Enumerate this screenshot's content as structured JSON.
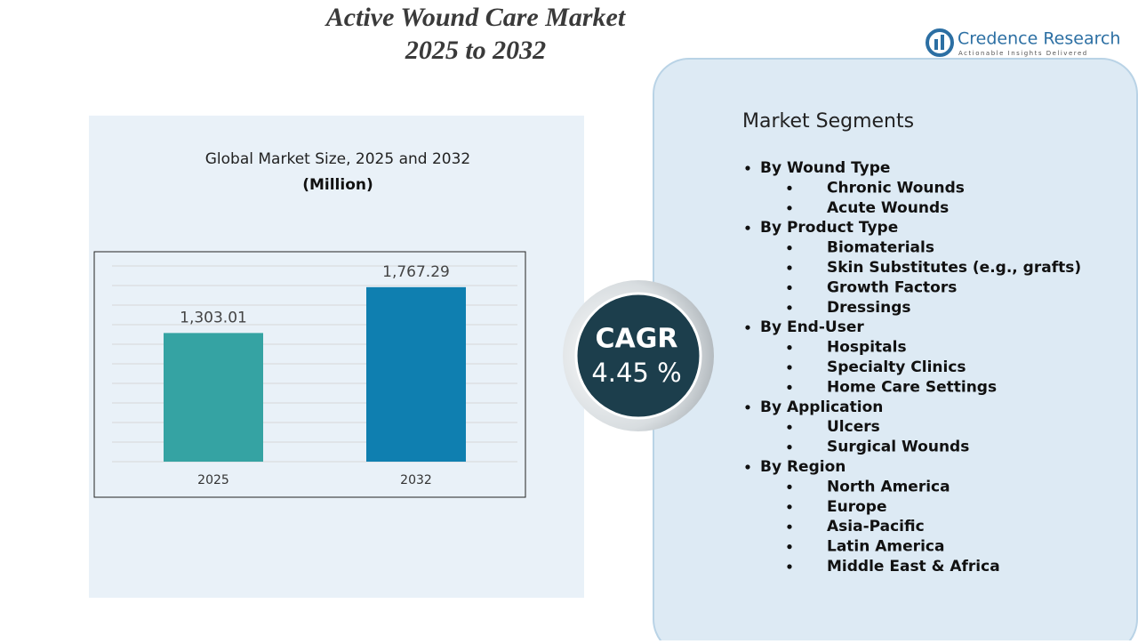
{
  "header": {
    "title_lines": [
      "Active Wound Care Market",
      "2025 to 2032"
    ]
  },
  "logo": {
    "name": "Credence Research",
    "tagline": "Actionable Insights Delivered"
  },
  "chart_data": {
    "type": "bar",
    "title": "Global Market Size, 2025 and 2032",
    "subtitle": "(Million)",
    "categories": [
      "2025",
      "2032"
    ],
    "values": [
      1303.01,
      1767.29
    ],
    "value_labels": [
      "1,303.01",
      "1,767.29"
    ],
    "colors": [
      "#35a3a3",
      "#0f7fb0"
    ],
    "ylim": [
      0,
      2000
    ]
  },
  "cagr": {
    "label": "CAGR",
    "value": "4.45 %"
  },
  "segments": {
    "title": "Market Segments",
    "groups": [
      {
        "name": "By Wound Type",
        "items": [
          "Chronic Wounds",
          "Acute Wounds"
        ]
      },
      {
        "name": "By Product Type",
        "items": [
          "Biomaterials",
          "Skin Substitutes (e.g., grafts)",
          "Growth Factors",
          "Dressings"
        ]
      },
      {
        "name": "By End-User",
        "items": [
          "Hospitals",
          "Specialty Clinics",
          "Home Care Settings"
        ]
      },
      {
        "name": "By Application",
        "items": [
          "Ulcers",
          "Surgical Wounds"
        ]
      },
      {
        "name": "By Region",
        "items": [
          "North America",
          "Europe",
          "Asia-Pacific",
          "Latin America",
          "Middle East & Africa"
        ]
      }
    ]
  }
}
